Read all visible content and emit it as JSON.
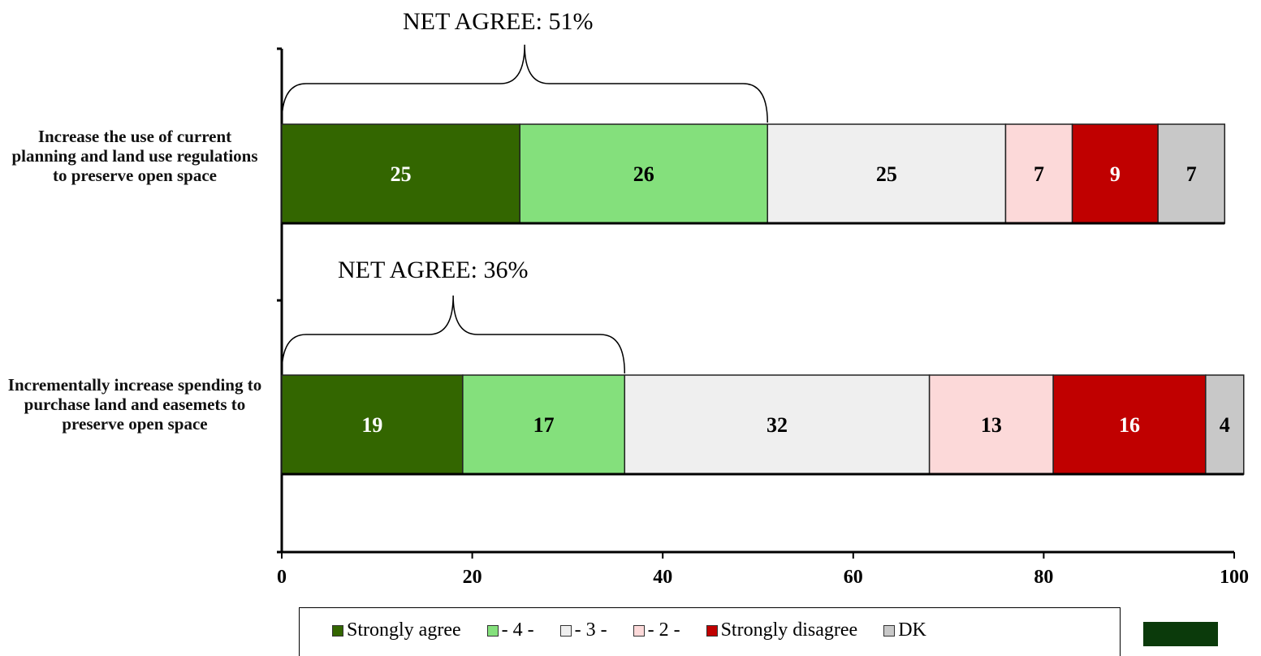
{
  "chart_data": {
    "type": "bar",
    "orientation": "horizontal-stacked",
    "categories": [
      "Increase the use of current planning and land use regulations to preserve open space",
      "Incrementally increase spending to purchase land and easemets to preserve open space"
    ],
    "series": [
      {
        "name": "Strongly agree",
        "values": [
          25,
          19
        ],
        "color": "#336600",
        "label_color": "#ffffff"
      },
      {
        "name": "- 4 -",
        "values": [
          26,
          17
        ],
        "color": "#84e07c",
        "label_color": "#000000"
      },
      {
        "name": "- 3 -",
        "values": [
          25,
          32
        ],
        "color": "#efefef",
        "label_color": "#000000"
      },
      {
        "name": "- 2 -",
        "values": [
          7,
          13
        ],
        "color": "#fcd9d9",
        "label_color": "#000000"
      },
      {
        "name": "Strongly disagree",
        "values": [
          9,
          16
        ],
        "color": "#c00000",
        "label_color": "#ffffff"
      },
      {
        "name": "DK",
        "values": [
          7,
          4
        ],
        "color": "#c8c8c8",
        "label_color": "#000000"
      }
    ],
    "net_agree": [
      "NET AGREE: 51%",
      "NET AGREE: 36%"
    ],
    "xlim": [
      0,
      100
    ],
    "xticks": [
      "0",
      "20",
      "40",
      "60",
      "80",
      "100"
    ],
    "legend_position": "bottom",
    "grid": false
  },
  "labels": {
    "cat1": "Increase the use of current planning and land use regulations to preserve open space",
    "cat2": "Incrementally increase spending to purchase land and easemets to preserve open space",
    "net1": "NET AGREE: 51%",
    "net2": "NET AGREE: 36%"
  },
  "legend": {
    "items": [
      {
        "label": "Strongly agree",
        "color": "#336600"
      },
      {
        "label": "- 4 -",
        "color": "#84e07c"
      },
      {
        "label": "- 3 -",
        "color": "#efefef"
      },
      {
        "label": "- 2 -",
        "color": "#fcd9d9"
      },
      {
        "label": "Strongly disagree",
        "color": "#c00000"
      },
      {
        "label": "DK",
        "color": "#c8c8c8"
      }
    ]
  }
}
